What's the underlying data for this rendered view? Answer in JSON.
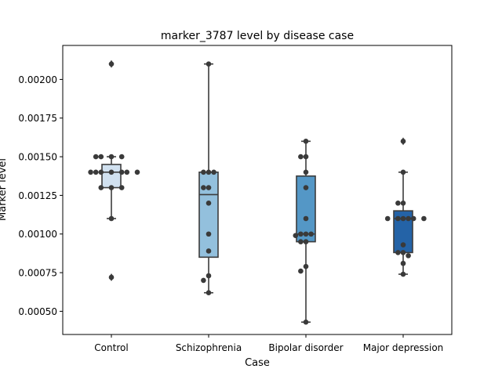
{
  "chart_data": {
    "type": "box",
    "title": "marker_3787 level by disease case",
    "xlabel": "Case",
    "ylabel": "Marker level",
    "ylim": [
      0.00035,
      0.00222
    ],
    "yticks": [
      0.0005,
      0.00075,
      0.001,
      0.00125,
      0.0015,
      0.00175,
      0.002
    ],
    "ytick_labels": [
      "0.00050",
      "0.00075",
      "0.00100",
      "0.00125",
      "0.00150",
      "0.00175",
      "0.00200"
    ],
    "categories": [
      "Control",
      "Schizophrenia",
      "Bipolar disorder",
      "Major depression"
    ],
    "colors": [
      "#d1e1f0",
      "#93c0dd",
      "#5497c6",
      "#2463a7"
    ],
    "boxes": [
      {
        "q1": 0.0013,
        "median": 0.0014,
        "q3": 0.00145,
        "whisker_low": 0.0011,
        "whisker_high": 0.0015,
        "fliers": [
          0.0021,
          0.00072
        ]
      },
      {
        "q1": 0.00085,
        "median": 0.001255,
        "q3": 0.0014,
        "whisker_low": 0.00062,
        "whisker_high": 0.0021,
        "fliers": []
      },
      {
        "q1": 0.00095,
        "median": 0.001,
        "q3": 0.001375,
        "whisker_low": 0.00043,
        "whisker_high": 0.0016,
        "fliers": []
      },
      {
        "q1": 0.00088,
        "median": 0.0011,
        "q3": 0.00115,
        "whisker_low": 0.00074,
        "whisker_high": 0.0014,
        "fliers": [
          0.0016
        ]
      }
    ],
    "points": [
      [
        0.0021,
        0.0015,
        0.0015,
        0.0015,
        0.0015,
        0.0014,
        0.0014,
        0.0014,
        0.0014,
        0.0014,
        0.0014,
        0.0014,
        0.0013,
        0.0013,
        0.0013,
        0.0011,
        0.00072
      ],
      [
        0.0021,
        0.0014,
        0.0014,
        0.0014,
        0.0013,
        0.0013,
        0.0012,
        0.001,
        0.00089,
        0.00073,
        0.0007,
        0.00062
      ],
      [
        0.0016,
        0.0015,
        0.0015,
        0.0014,
        0.0013,
        0.0011,
        0.001,
        0.001,
        0.001,
        0.00099,
        0.00095,
        0.00095,
        0.00079,
        0.00076,
        0.00043
      ],
      [
        0.0016,
        0.0014,
        0.0012,
        0.0012,
        0.0011,
        0.0011,
        0.0011,
        0.0011,
        0.0011,
        0.0011,
        0.00093,
        0.00088,
        0.00088,
        0.00086,
        0.00081,
        0.00074
      ]
    ]
  }
}
